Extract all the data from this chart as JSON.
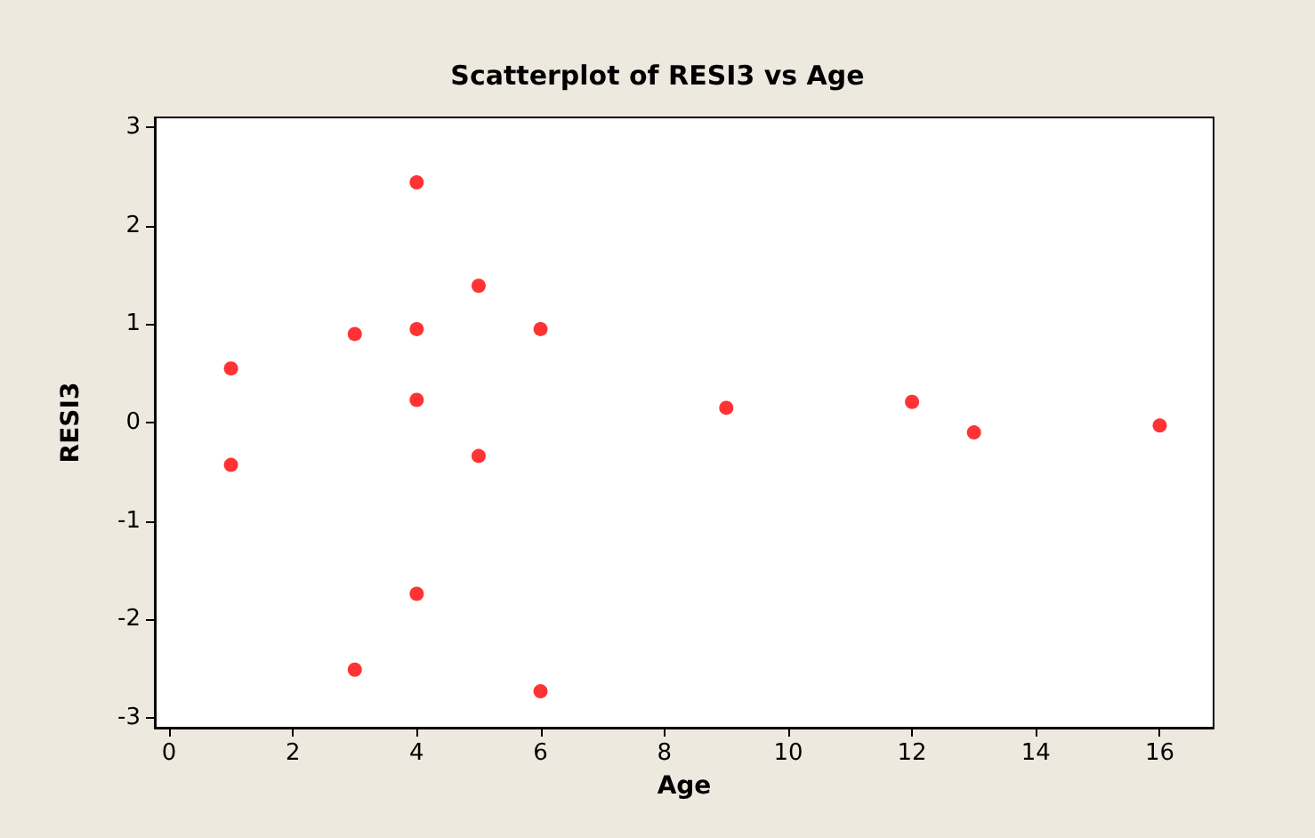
{
  "chart_data": {
    "type": "scatter",
    "title": "Scatterplot of RESI3 vs Age",
    "xlabel": "Age",
    "ylabel": "RESI3",
    "x": [
      1,
      1,
      3,
      3,
      4,
      4,
      4,
      4,
      5,
      5,
      6,
      6,
      9,
      12,
      13,
      16
    ],
    "values": [
      0.55,
      -0.43,
      0.9,
      -2.51,
      2.44,
      0.95,
      0.23,
      -1.74,
      1.39,
      -0.34,
      0.95,
      -2.73,
      0.15,
      0.21,
      -0.1,
      -0.03
    ],
    "color": "#ff0000",
    "marker": "circle",
    "xlim": [
      -0.23,
      16.87
    ],
    "xticks": [
      0,
      2,
      4,
      6,
      8,
      10,
      12,
      14,
      16
    ],
    "ylim": [
      -3.1,
      3.1
    ],
    "yticks": [
      -3,
      -2,
      -1,
      0,
      1,
      2,
      3
    ],
    "grid": false
  }
}
